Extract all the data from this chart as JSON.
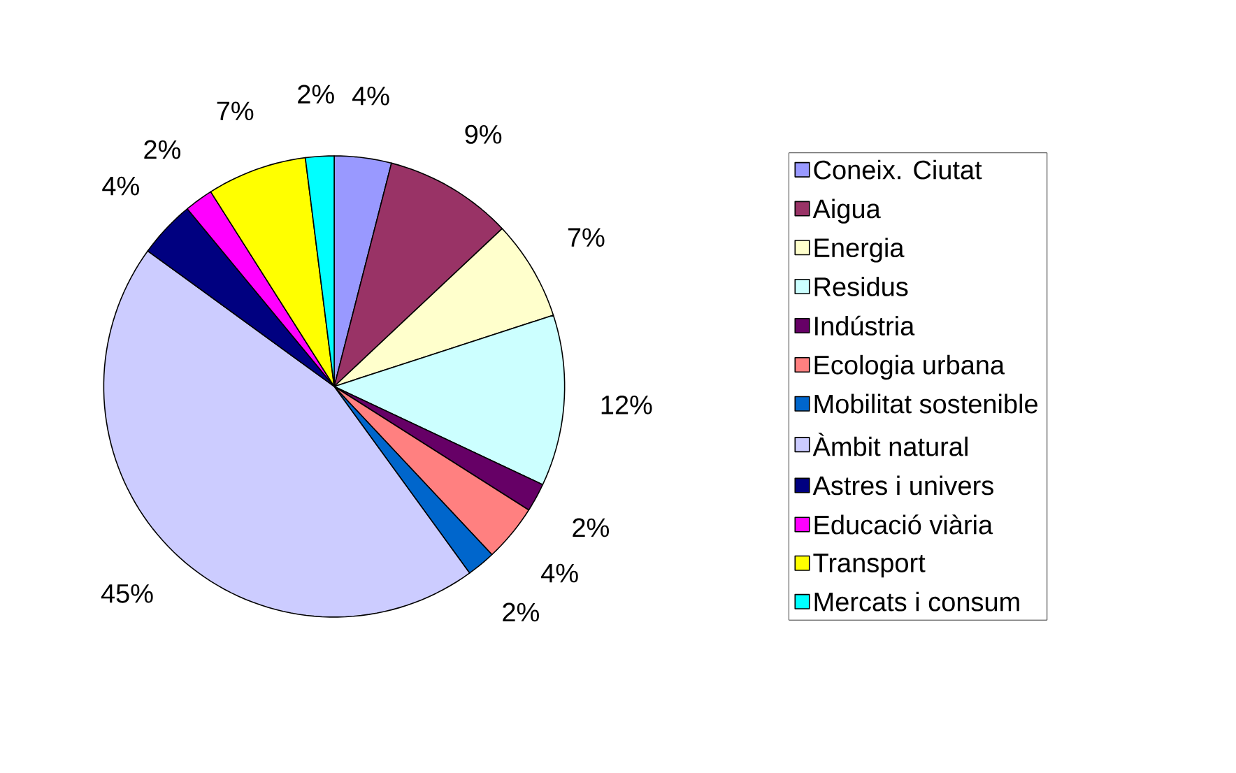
{
  "chart_data": {
    "type": "pie",
    "categories": [
      "Coneix. Ciutat",
      "Aigua",
      "Energia",
      "Residus",
      "Indústria",
      "Ecologia urbana",
      "Mobilitat sostenible",
      "Àmbit natural",
      "Astres i univers",
      "Educació viària",
      "Transport",
      "Mercats i consum"
    ],
    "values": [
      4,
      9,
      7,
      12,
      2,
      4,
      2,
      45,
      4,
      2,
      7,
      2
    ],
    "value_labels": [
      "4%",
      "9%",
      "7%",
      "12%",
      "2%",
      "4%",
      "2%",
      "45%",
      "4%",
      "2%",
      "7%",
      "2%"
    ],
    "colors": [
      "#9999ff",
      "#993366",
      "#ffffcc",
      "#ccffff",
      "#660066",
      "#ff8080",
      "#0066cc",
      "#ccccff",
      "#000080",
      "#ff00ff",
      "#ffff00",
      "#00ffff"
    ],
    "legend": "right"
  }
}
